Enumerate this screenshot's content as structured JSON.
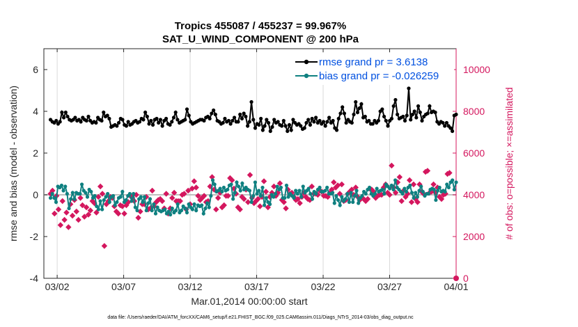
{
  "chart_data": {
    "type": "line",
    "title_line1": "Tropics 455087 / 455237 =  99.967%",
    "title_line2": "SAT_U_WIND_COMPONENT @ 200 hPa",
    "xlabel": "Mar.01,2014 00:00:00 start",
    "ylabel_left": "rmse and bias (model - observation)",
    "ylabel_right": "# of obs: o=possible; ×=assimilated",
    "footer": "data file: /Users/raeder/DAI/ATM_forcXX/CAM6_setup/f.e21.FHIST_BGC.f09_025.CAM6assim.011/Diags_NTrS_2014-03/obs_diag_output.nc",
    "xlim_days": [
      0,
      31
    ],
    "ylim_left": [
      -4,
      7
    ],
    "ylim_right": [
      0,
      11000
    ],
    "x_ticks": [
      {
        "day": 1,
        "label": "03/02"
      },
      {
        "day": 6,
        "label": "03/07"
      },
      {
        "day": 11,
        "label": "03/12"
      },
      {
        "day": 16,
        "label": "03/17"
      },
      {
        "day": 21,
        "label": "03/22"
      },
      {
        "day": 26,
        "label": "03/27"
      },
      {
        "day": 31,
        "label": "04/01"
      }
    ],
    "y_ticks_left": [
      "-4",
      "-2",
      "0",
      "2",
      "4",
      "6"
    ],
    "y_ticks_left_values": [
      -4,
      -2,
      0,
      2,
      4,
      6
    ],
    "y_ticks_right": [
      "0",
      "2000",
      "4000",
      "6000",
      "8000",
      "10000"
    ],
    "y_ticks_right_values": [
      0,
      2000,
      4000,
      6000,
      8000,
      10000
    ],
    "step_days": 0.25,
    "series": [
      {
        "name": "rmse grand pr = 3.6138",
        "color": "#000000",
        "axis": "left",
        "values": [
          3.6,
          3.5,
          3.45,
          3.55,
          3.4,
          3.5,
          3.95,
          3.7,
          3.95,
          3.75,
          3.6,
          3.55,
          3.6,
          3.7,
          3.55,
          3.6,
          3.5,
          3.7,
          3.6,
          3.55,
          3.75,
          3.55,
          3.45,
          3.5,
          3.45,
          3.7,
          3.6,
          3.55,
          3.95,
          3.75,
          3.8,
          3.65,
          3.25,
          3.3,
          3.35,
          3.3,
          3.45,
          3.65,
          3.6,
          3.35,
          3.3,
          3.5,
          3.35,
          3.4,
          3.5,
          3.55,
          3.45,
          3.5,
          3.65,
          3.6,
          3.95,
          3.75,
          3.4,
          3.55,
          3.35,
          3.6,
          3.65,
          3.45,
          3.6,
          3.3,
          3.55,
          3.65,
          3.4,
          3.35,
          3.5,
          3.7,
          3.95,
          3.6,
          3.45,
          3.5,
          3.55,
          3.6,
          4.1,
          3.8,
          3.5,
          3.4,
          3.45,
          3.5,
          3.55,
          3.6,
          3.6,
          3.55,
          3.7,
          3.75,
          3.65,
          3.9,
          4.05,
          3.85,
          3.55,
          3.5,
          3.4,
          3.45,
          3.65,
          3.5,
          3.55,
          3.4,
          3.55,
          3.7,
          3.5,
          3.5,
          3.85,
          3.65,
          3.9,
          3.75,
          3.3,
          3.5,
          4.45,
          3.6,
          3.2,
          3.4,
          3.35,
          3.65,
          3.1,
          3.3,
          3.6,
          3.45,
          3.05,
          3.25,
          3.6,
          3.45,
          3.5,
          3.35,
          3.3,
          3.55,
          3.3,
          3.05,
          3.35,
          3.1,
          3.6,
          3.45,
          3.35,
          3.4,
          3.3,
          3.15,
          3.2,
          3.45,
          3.6,
          3.35,
          3.65,
          3.5,
          3.7,
          3.45,
          3.55,
          3.4,
          3.5,
          3.3,
          3.5,
          3.7,
          3.45,
          3.55,
          3.2,
          3.1,
          3.65,
          3.9,
          4.2,
          3.9,
          3.45,
          3.6,
          3.5,
          3.45,
          3.85,
          4.45,
          3.95,
          4.15,
          4.35,
          3.7,
          3.75,
          3.5,
          3.55,
          3.4,
          3.4,
          3.55,
          3.45,
          3.55,
          4.0,
          4.1,
          3.75,
          3.55,
          3.3,
          3.55,
          3.65,
          4.25,
          4.55,
          3.85,
          3.65,
          3.7,
          3.75,
          3.55,
          3.8,
          5.1,
          3.6,
          3.85,
          4.0,
          3.7,
          4.25,
          3.95,
          3.55,
          3.75,
          3.85,
          3.9,
          4.25,
          3.95,
          4.0,
          3.95,
          3.5,
          3.4,
          3.5,
          3.45,
          3.3,
          3.45,
          3.3,
          3.2,
          3.05,
          3.8,
          3.85
        ]
      },
      {
        "name": "bias grand pr = -0.026259",
        "color": "#0f8080",
        "axis": "left",
        "values": [
          -0.15,
          0.05,
          -0.15,
          -0.35,
          0.4,
          0.35,
          0.45,
          0.2,
          0.4,
          0.05,
          -0.65,
          -0.2,
          0.1,
          -0.2,
          0.1,
          0.05,
          0.05,
          0.5,
          0.2,
          0.1,
          -0.1,
          0.25,
          0.15,
          -0.15,
          -0.05,
          -0.55,
          -0.7,
          -0.3,
          -0.7,
          -0.25,
          -0.1,
          0.05,
          -0.35,
          -0.1,
          -0.05,
          -0.5,
          -0.35,
          -0.15,
          -0.1,
          0.15,
          -0.35,
          -0.25,
          -0.05,
          0.05,
          -0.3,
          0.05,
          -0.6,
          -0.75,
          -0.2,
          -0.1,
          -0.35,
          -0.1,
          -0.75,
          -0.4,
          -0.2,
          -0.75,
          -0.45,
          -0.9,
          -0.6,
          -0.75,
          -0.8,
          -0.75,
          -0.7,
          -0.9,
          -0.8,
          -0.95,
          -0.65,
          -0.85,
          -0.75,
          -0.45,
          -0.85,
          -0.75,
          -0.55,
          -0.65,
          -0.85,
          -0.45,
          -0.6,
          -0.7,
          -0.45,
          -0.75,
          -0.5,
          -0.55,
          -0.5,
          -0.9,
          -0.65,
          -0.4,
          -0.6,
          -0.05,
          0.7,
          0.5,
          0.15,
          0.2,
          0.3,
          0.15,
          0.35,
          0.2,
          0.25,
          0.45,
          0.5,
          -0.2,
          0.1,
          0.6,
          0.4,
          0.2,
          0.55,
          0.25,
          0.35,
          0.25,
          0.2,
          -0.35,
          -0.05,
          0.6,
          0.05,
          0.2,
          -0.05,
          0.35,
          -0.5,
          -0.15,
          -0.35,
          -0.45,
          0.0,
          -0.1,
          0.05,
          0.4,
          0.25,
          0.35,
          -0.15,
          -0.15,
          0.45,
          -0.1,
          0.05,
          -0.05,
          -0.15,
          0.2,
          0.05,
          0.2,
          -0.1,
          0.4,
          0.1,
          0.2,
          0.3,
          0.05,
          -0.2,
          0.15,
          0.05,
          0.25,
          0.35,
          0.15,
          0.15,
          0.2,
          0.35,
          0.05,
          0.05,
          0.1,
          -0.4,
          -0.05,
          -0.25,
          -0.5,
          -0.1,
          -0.3,
          -0.2,
          0.05,
          -0.35,
          0.1,
          -0.35,
          -0.05,
          0.2,
          -0.4,
          -0.15,
          -0.05,
          0.15,
          0.05,
          0.25,
          0.35,
          0.05,
          -0.05,
          0.05,
          0.3,
          0.15,
          0.2,
          0.25,
          0.05,
          0.5,
          0.4,
          0.3,
          0.45,
          0.25,
          0.7,
          0.35,
          0.25,
          0.15,
          0.05,
          0.3,
          0.15,
          0.35,
          0.45,
          0.1,
          -0.15,
          0.1,
          -0.1,
          0.2,
          0.4,
          0.15,
          -0.05,
          0.05,
          0.05,
          0.25,
          0.3,
          0.25,
          -0.25,
          0.2,
          0.35,
          0.15,
          0.2,
          0.15,
          0.5,
          0.35,
          0.6,
          0.7,
          0.25,
          0.6
        ]
      },
      {
        "name": "# obs assimilated",
        "color": "#d4175e",
        "axis": "right",
        "marker_only": true,
        "values": [
          4050,
          4200,
          3100,
          3950,
          3300,
          2550,
          3700,
          2800,
          3150,
          2450,
          3550,
          3000,
          3750,
          3200,
          2800,
          3850,
          3500,
          2950,
          3400,
          3050,
          3250,
          3700,
          3600,
          3150,
          3900,
          4400,
          4050,
          1550,
          3550,
          3700,
          3900,
          3850,
          3450,
          3200,
          3100,
          3500,
          3450,
          3100,
          3500,
          3650,
          3950,
          3850,
          3700,
          4000,
          2900,
          3200,
          3550,
          3550,
          3900,
          3300,
          3350,
          4200,
          3450,
          3650,
          3750,
          3800,
          3700,
          3350,
          4050,
          3100,
          3350,
          3850,
          4100,
          3700,
          3700,
          3700,
          4000,
          4050,
          3300,
          4200,
          3550,
          4300,
          4650,
          4350,
          3950,
          3750,
          3850,
          3950,
          3650,
          3700,
          4400,
          4850,
          4250,
          3300,
          3850,
          4100,
          3400,
          3500,
          3950,
          3950,
          4800,
          4700,
          4300,
          4050,
          3400,
          3300,
          3900,
          3800,
          4250,
          3650,
          4950,
          3850,
          3600,
          3700,
          3800,
          3450,
          3900,
          4650,
          4150,
          3400,
          3900,
          4100,
          4400,
          3950,
          4100,
          4550,
          3750,
          3650,
          3350,
          4250,
          4050,
          4100,
          3900,
          3750,
          3800,
          3600,
          3900,
          4100,
          3900,
          3800,
          3750,
          4400,
          4050,
          4050,
          4000,
          4200,
          4150,
          3950,
          3950,
          3900,
          4100,
          4250,
          4600,
          4350,
          4450,
          4050,
          4500,
          3700,
          3750,
          4050,
          4150,
          4250,
          4000,
          4350,
          3900,
          3750,
          3850,
          3800,
          3700,
          3800,
          4300,
          4250,
          4150,
          3850,
          3950,
          4000,
          4000,
          4350,
          4500,
          4100,
          4000,
          5400,
          4350,
          4100,
          4600,
          4850,
          3700,
          4200,
          3900,
          4050,
          4700,
          3650,
          4500,
          3800,
          3650,
          4500,
          4150,
          4050,
          5100,
          5150,
          4100,
          4150,
          4500,
          4100,
          4350,
          3900,
          3800,
          4000,
          4050,
          5000,
          5050
        ]
      }
    ]
  },
  "legend": {
    "rmse": "rmse grand pr = 3.6138",
    "bias": "bias grand pr = -0.026259"
  },
  "colors": {
    "rmse": "#000000",
    "bias": "#0f8080",
    "obs": "#d4175e",
    "axis": "#262626",
    "legend_text": "#0050e0"
  }
}
